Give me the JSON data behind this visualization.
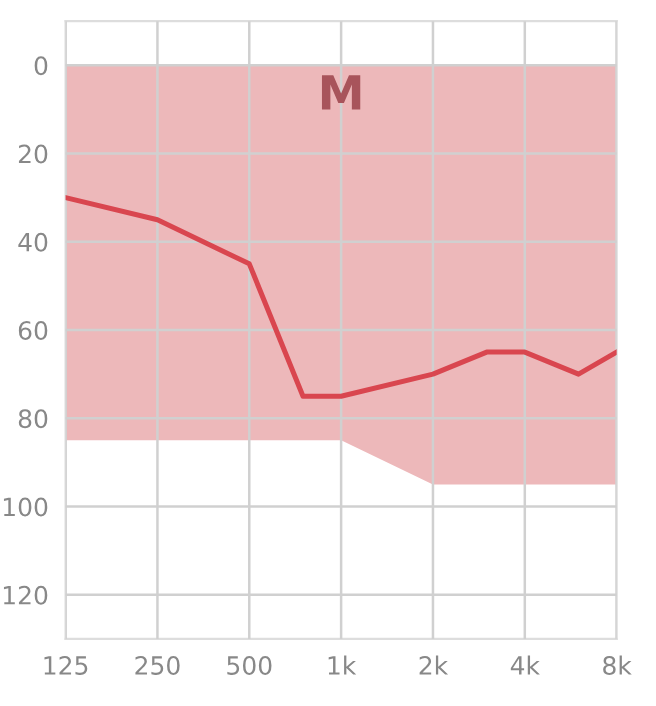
{
  "chart_data": {
    "type": "line",
    "log": "x",
    "series": [
      {
        "type": "area",
        "color": "#edb8ba",
        "x": [
          125,
          250,
          500,
          1000,
          2000,
          4000,
          8000
        ],
        "values": [
          85,
          85,
          85,
          85,
          95,
          95,
          95
        ]
      },
      {
        "color": "#d9464f",
        "x": [
          125,
          250,
          500,
          750,
          1000,
          2000,
          3000,
          4000,
          6000,
          8000
        ],
        "values": [
          30,
          35,
          45,
          75,
          75,
          70,
          65,
          65,
          70,
          65
        ]
      }
    ],
    "annotations": [
      "M"
    ],
    "xlim": [
      125,
      8000
    ],
    "xticks": [
      125,
      250,
      500,
      {
        "value": 1000,
        "label": "1k"
      },
      {
        "value": 2000,
        "label": "2k"
      },
      {
        "value": 4000,
        "label": "4k"
      },
      {
        "value": 8000,
        "label": "8k"
      }
    ],
    "ylim": [
      130,
      -10
    ],
    "yticks": [
      0,
      20,
      40,
      60,
      80,
      100,
      120
    ],
    "grid": true,
    "legend": false,
    "marker": "none",
    "line_style": "solid"
  }
}
